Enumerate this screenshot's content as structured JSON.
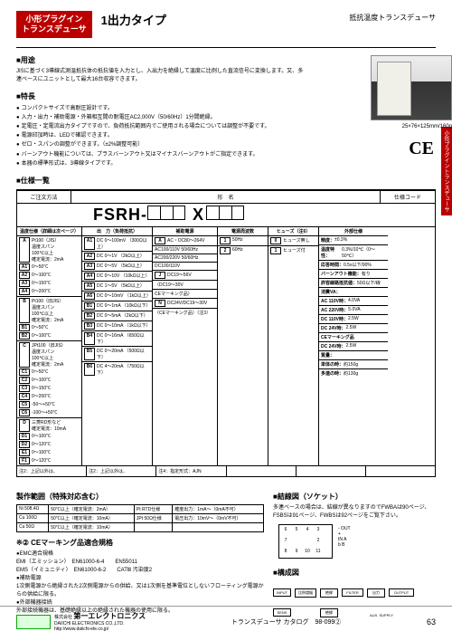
{
  "header": {
    "category_l1": "小形プラグイン",
    "category_l2": "トランスデューサ",
    "title": "1出力タイプ",
    "subtitle": "抵抗温度トランスデューサ"
  },
  "youto": {
    "h": "■用途",
    "body": "JISに基づく3導線式測温抵抗体の抵抗値を入力とし、入出力を絶縁して温度に比例した直流信号に変換します。又、多連ベースにユニットとして最大16台収容できます。"
  },
  "toku": {
    "h": "■特長",
    "items": [
      "コンパクトサイズで高耐圧設計です。",
      "入力・出力・補助電源・外箱相互間の耐電圧AC2,000V（50/60Hz）1分間絶縁。",
      "定電圧・定電流出力タイプですので、負荷抵抗範囲内でご使用される場合については調整が不要です。",
      "電源印加時は、LEDで確認できます。",
      "ゼロ・スパンの調整ができます。（±2%調整可能）",
      "バーンアウト機能については、プラスバーンアウト又はマイナスバーンアウトがご指定できます。",
      "本器の標準形式は、3導線タイプです。"
    ]
  },
  "prod": {
    "dim": "25×76×125mm/160g",
    "ce": "CE"
  },
  "sidetab": "小形プラグイントランスデューサ",
  "spec_h": "■仕様一覧",
  "model": {
    "col1": "ご注文方法",
    "col2": "形　名",
    "col3": "仕様コード",
    "prefix": "FSRH-",
    "x": "X"
  },
  "grid": {
    "h1": "温度仕様（詳細は次ページ）",
    "h2": "出　力（負荷抵抗）",
    "h3": "補助電源",
    "h4": "電源周波数",
    "h5": "ヒューズ（注6）",
    "h6": "外部仕様",
    "c1": [
      {
        "sub": "A",
        "r": [
          "Pt100（JIS）",
          "温度スパン",
          "100℃以上",
          "確定電流：2mA"
        ],
        "codes": [
          [
            "A1",
            "0～50℃"
          ],
          [
            "A2",
            "0～100℃"
          ],
          [
            "A3",
            "0～150℃"
          ],
          [
            "A4",
            "0～200℃"
          ]
        ]
      },
      {
        "sub": "B",
        "r": [
          "Pt100（旧JIS）",
          "温度スパン",
          "100℃以上",
          "確定電流：2mA"
        ],
        "codes": [
          [
            "B1",
            "0～50℃"
          ],
          [
            "B2",
            "0～100℃"
          ]
        ]
      },
      {
        "sub": "C",
        "r": [
          "JPt100（旧JIS）",
          "温度スパン",
          "100℃以上",
          "確定電流：2mA"
        ],
        "codes": [
          [
            "C1",
            "0～50℃"
          ],
          [
            "C2",
            "0～100℃"
          ],
          [
            "C3",
            "0～150℃"
          ],
          [
            "C4",
            "0～200℃"
          ],
          [
            "C5",
            "-50～+50℃"
          ],
          [
            "C6",
            "-100～+50℃"
          ]
        ]
      },
      {
        "sub": "D",
        "r": [
          "三菱RD形など",
          "確定電流：10mA"
        ],
        "codes": [
          [
            "D1",
            "0～100℃"
          ],
          [
            "D2",
            "0～120℃"
          ],
          [
            "E1",
            "0～100℃"
          ],
          [
            "F1",
            "0～120℃"
          ]
        ]
      }
    ],
    "c2": [
      [
        "A1",
        "DC 0～100mV",
        "（300Ω以上）"
      ],
      [
        "A2",
        "DC 0～1V",
        "（2kΩ以上）"
      ],
      [
        "A3",
        "DC 0～5V",
        "（5kΩ以上）"
      ],
      [
        "A4",
        "DC 0～10V",
        "（10kΩ以上）"
      ],
      [
        "A5",
        "DC 1～5V",
        "（5kΩ以上）"
      ],
      [
        "A6",
        "DC 0～10mV",
        "（1kΩ以上）"
      ],
      [
        "B1",
        "DC 0～1mA",
        "（10kΩ以下）"
      ],
      [
        "B2",
        "DC 0～5mA",
        "（2kΩ以下）"
      ],
      [
        "B3",
        "DC 0～10mA",
        "（1kΩ以下）"
      ],
      [
        "B4",
        "DC 0～16mA",
        "（650Ω以下）"
      ],
      [
        "B5",
        "DC 0～20mA",
        "（500Ω以下）"
      ],
      [
        "B6",
        "DC 4～20mA",
        "（750Ω以下）"
      ]
    ],
    "c3": [
      [
        "A",
        "AC・DC80～264V"
      ],
      [
        "",
        "AC100/110V 50/60Hz"
      ],
      [
        "",
        "AC200/220V 50/60Hz"
      ],
      [
        "",
        "DC100/110V"
      ],
      [
        "J",
        "DC19～56V"
      ],
      [
        "",
        "（DC19～30V"
      ],
      [
        "",
        "CEマーキング品）"
      ],
      [
        "N",
        "DC24V/DC19～30V"
      ],
      [
        "",
        "（CEマーキング品）（注3）"
      ]
    ],
    "c4": [
      [
        "1",
        "50Hz"
      ],
      [
        "2",
        "60Hz"
      ]
    ],
    "c5": [
      [
        "0",
        "ヒューズ無し"
      ],
      [
        "1",
        "ヒューズ付"
      ]
    ],
    "c6": [
      [
        "精度：",
        "±0.3%"
      ],
      [
        "温度特性：",
        "0.3%/10℃（0～50℃）"
      ],
      [
        "応答時間：",
        "0.5s以下/90%"
      ],
      [
        "バーンアウト機能：",
        "有り"
      ],
      [
        "許容線路抵抗値：",
        "50Ω以下/線"
      ],
      [
        "消費VA：",
        ""
      ],
      [
        "AC 110V時：",
        "4.0VA"
      ],
      [
        "AC 220V時：",
        "5.0VA"
      ],
      [
        "DC 110V時：",
        "2.5W"
      ],
      [
        "DC 24V時：",
        "2.5W"
      ],
      [
        "CEマーキング品",
        ""
      ],
      [
        "DC 24V時：",
        "2.5W"
      ],
      [
        "質量：",
        ""
      ],
      [
        "単体の時：",
        "約150g"
      ],
      [
        "多連の時：",
        "約130g"
      ]
    ]
  },
  "notes": {
    "n2a": "注2：上記以外は、",
    "n2b": "注2：上記以外は、",
    "n4": "注4：指定形式：AJN"
  },
  "seizo": {
    "h": "製作範囲（特殊対応含む）",
    "rows": [
      [
        "Ni 508.4Ω",
        "50℃以上（確定電流：2mA）",
        "Pt RTD仕様",
        "確度出力：1mA～（0mA不可）"
      ],
      [
        "Cu 100Ω",
        "50℃以上（確定電流：10mA）",
        "JPt 50Ω仕様",
        "電圧出力：10mV～（0mV不可）"
      ],
      [
        "Cu 50Ω",
        "50℃以上（確定電流：10mA）",
        "",
        ""
      ]
    ]
  },
  "ce_std": {
    "h": "※② CEマーキング品適合規格",
    "s1": "●EMC適合規格",
    "r1a": "EMI（エミッション）　EN61000-6-4　　EN55011",
    "r1b": "EMS（イミュニティ）　EN61000-6-2　　CATⅢ 汚染度2",
    "s2": "●補助電源",
    "r2": "1次側電源から絶縁された2次側電源からの供給、又は1次側を基準電位としないフローティング電源からの供給に限る。",
    "s3": "●外部機器接続",
    "r3": "外部接続機器は、基礎絶縁以上の絶縁された機器の使用に限る。"
  },
  "anzen": {
    "h": "■安全規格"
  },
  "kessen": {
    "h": "■結線図（ソケット）",
    "txt": "多連ベースの場合は、結線が異なりますのでFWBAは90ページ、FSBSは91ページ、FWBSは92ページをご覧下さい。",
    "pins": [
      "1",
      "2",
      "3",
      "4",
      "5",
      "6",
      "7",
      "8",
      "9",
      "10",
      "11"
    ],
    "labels": [
      "-OUT",
      "+",
      "IN A",
      "b",
      "B"
    ]
  },
  "kosei": {
    "h": "■構成図",
    "blocks": [
      "INPUT",
      "比例増幅",
      "絶縁",
      "FILTER",
      "出力",
      "OUTPUT",
      "SENS",
      "絶縁",
      "AUX. SUPPLY"
    ]
  },
  "footer": {
    "company_jp": "第一エレクトロニクス",
    "company_en": "DAIICHI ELECTRONICS CO.,LTD.",
    "url": "http://www.daiichi-ele.co.jp/",
    "catalog": "トランスデューサ カタログ　98-099②",
    "page": "63",
    "kabushiki": "株式会社"
  }
}
